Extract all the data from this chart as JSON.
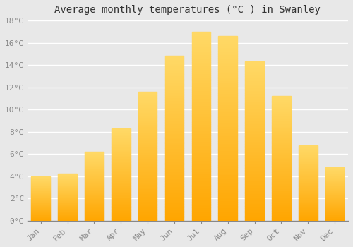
{
  "months": [
    "Jan",
    "Feb",
    "Mar",
    "Apr",
    "May",
    "Jun",
    "Jul",
    "Aug",
    "Sep",
    "Oct",
    "Nov",
    "Dec"
  ],
  "values": [
    4.0,
    4.2,
    6.2,
    8.3,
    11.6,
    14.8,
    17.0,
    16.6,
    14.3,
    11.2,
    6.8,
    4.8
  ],
  "bar_color": "#FFA500",
  "bar_color_light": "#FFD966",
  "title": "Average monthly temperatures (°C ) in Swanley",
  "ylim": [
    0,
    18
  ],
  "yticks": [
    0,
    2,
    4,
    6,
    8,
    10,
    12,
    14,
    16,
    18
  ],
  "ytick_labels": [
    "0°C",
    "2°C",
    "4°C",
    "6°C",
    "8°C",
    "10°C",
    "12°C",
    "14°C",
    "16°C",
    "18°C"
  ],
  "background_color": "#e8e8e8",
  "grid_color": "#ffffff",
  "title_fontsize": 10,
  "tick_fontsize": 8,
  "font_family": "monospace",
  "bar_width": 0.7,
  "figsize": [
    5.0,
    3.5
  ],
  "dpi": 100
}
